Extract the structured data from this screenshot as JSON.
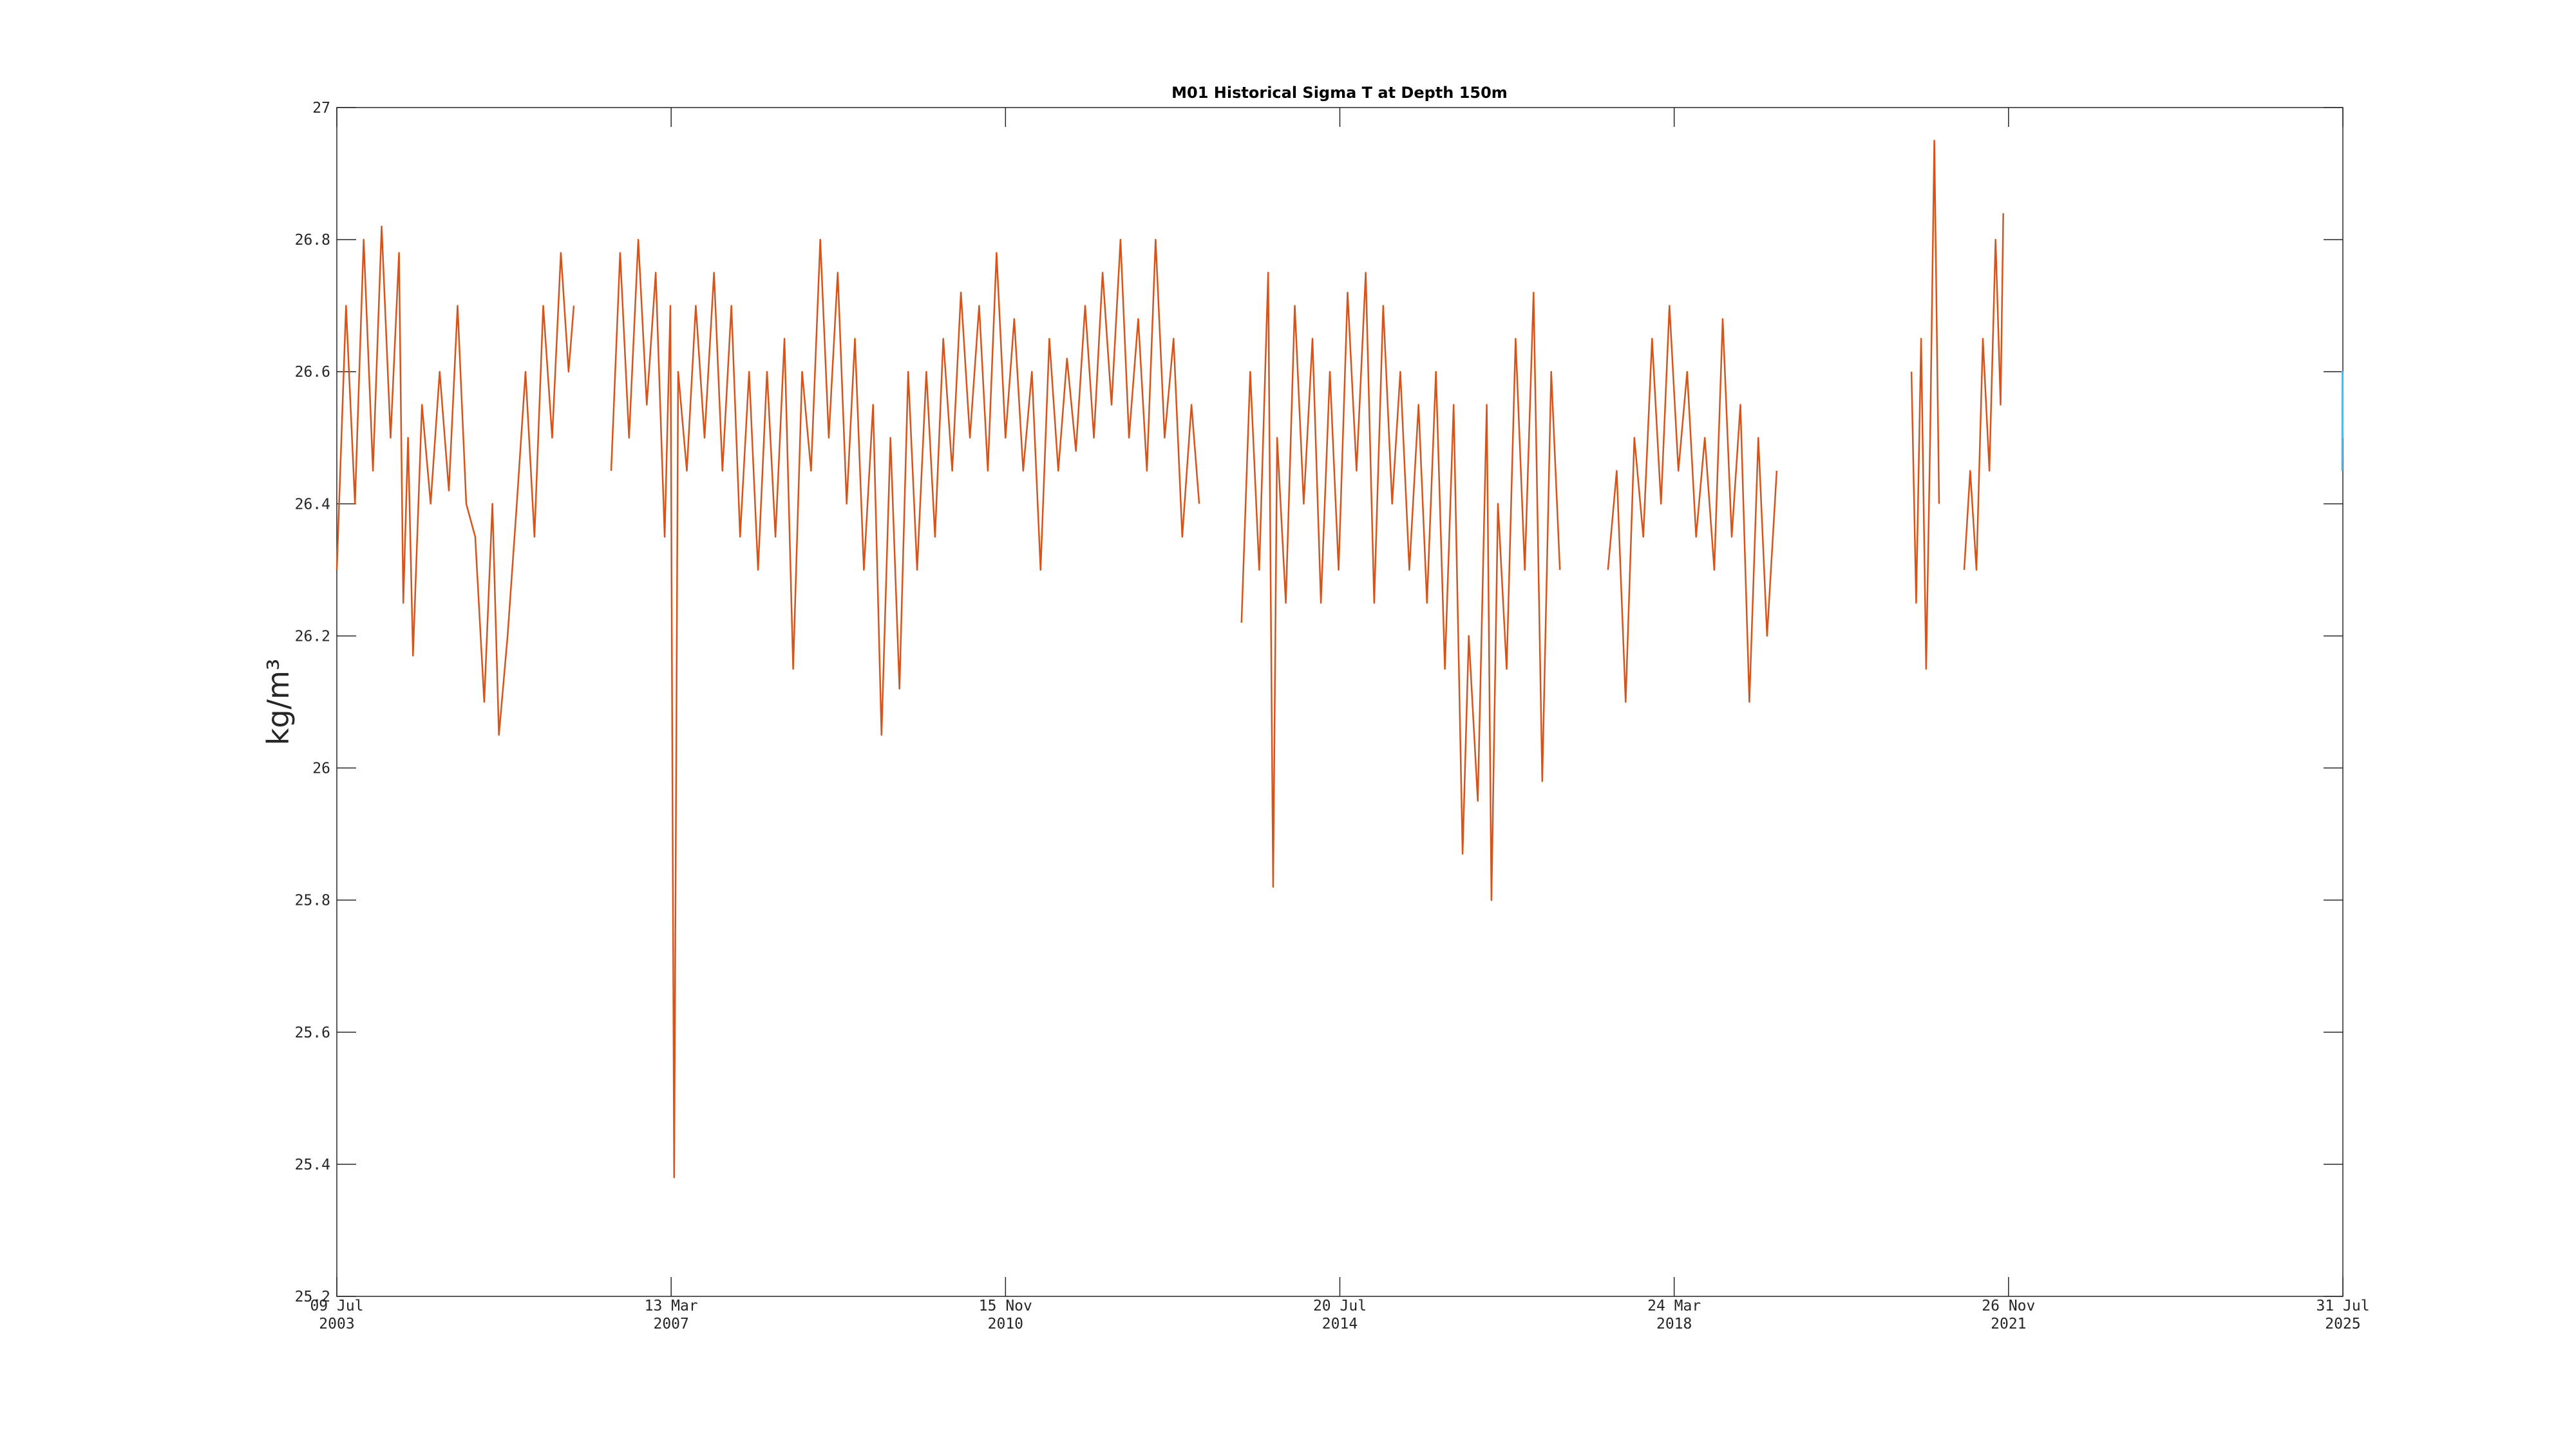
{
  "chart_data": {
    "type": "line",
    "title": "M01 Historical Sigma T at Depth 150m",
    "ylabel": "kg/m³",
    "xlim": [
      "2003-07-09",
      "2025-07-31"
    ],
    "xticks": [
      {
        "value": "2003-07-09",
        "label": [
          "09 Jul",
          "2003"
        ]
      },
      {
        "value": "2007-03-13",
        "label": [
          "13 Mar",
          "2007"
        ]
      },
      {
        "value": "2010-11-15",
        "label": [
          "15 Nov",
          "2010"
        ]
      },
      {
        "value": "2014-07-20",
        "label": [
          "20 Jul",
          "2014"
        ]
      },
      {
        "value": "2018-03-24",
        "label": [
          "24 Mar",
          "2018"
        ]
      },
      {
        "value": "2021-11-26",
        "label": [
          "26 Nov",
          "2021"
        ]
      },
      {
        "value": "2025-07-31",
        "label": [
          "31 Jul",
          "2025"
        ]
      }
    ],
    "ylim": [
      25.2,
      27
    ],
    "yticks": [
      25.2,
      25.4,
      25.6,
      25.8,
      26,
      26.2,
      26.4,
      26.6,
      26.8,
      27
    ],
    "grid": false,
    "series": [
      {
        "color": "#d95319",
        "x": [
          "2003-07-09",
          "2003-08-15",
          "2003-09-20",
          "2003-10-25",
          "2003-12-01",
          "2004-01-05",
          "2004-02-10",
          "2004-03-15",
          "2004-04-01",
          "2004-04-20",
          "2004-05-10",
          "2004-06-15",
          "2004-07-20",
          "2004-08-25",
          "2004-10-01",
          "2004-11-05",
          "2004-12-10",
          "2005-01-15",
          "2005-02-20",
          "2005-03-25",
          "2005-04-20",
          "2005-05-25",
          "2005-07-01",
          "2005-08-05",
          "2005-09-10",
          "2005-10-15",
          "2005-11-20",
          "2005-12-25",
          "2006-01-25",
          "2006-02-15",
          "2006-04-01",
          "2006-07-15",
          "2006-08-20",
          "2006-09-25",
          "2006-11-01",
          "2006-12-05",
          "2007-01-10",
          "2007-02-15",
          "2007-03-10",
          "2007-03-25",
          "2007-04-10",
          "2007-05-15",
          "2007-06-20",
          "2007-07-25",
          "2007-09-01",
          "2007-10-05",
          "2007-11-10",
          "2007-12-15",
          "2008-01-20",
          "2008-02-25",
          "2008-04-01",
          "2008-05-05",
          "2008-06-10",
          "2008-07-15",
          "2008-08-20",
          "2008-09-25",
          "2008-11-01",
          "2008-12-05",
          "2009-01-10",
          "2009-02-15",
          "2009-03-20",
          "2009-04-25",
          "2009-06-01",
          "2009-07-05",
          "2009-08-10",
          "2009-09-15",
          "2009-10-20",
          "2009-11-25",
          "2010-01-01",
          "2010-02-05",
          "2010-03-10",
          "2010-04-15",
          "2010-05-20",
          "2010-06-25",
          "2010-08-01",
          "2010-09-05",
          "2010-10-10",
          "2010-11-15",
          "2010-12-20",
          "2011-01-25",
          "2011-03-01",
          "2011-04-05",
          "2011-05-10",
          "2011-06-15",
          "2011-07-20",
          "2011-08-25",
          "2011-10-01",
          "2011-11-05",
          "2011-12-10",
          "2012-01-15",
          "2012-02-20",
          "2012-03-25",
          "2012-05-01",
          "2012-06-05",
          "2012-07-10",
          "2012-08-15",
          "2012-09-20",
          "2012-10-25",
          "2012-12-01",
          "2013-01-01",
          "2013-03-01",
          "2013-06-20",
          "2013-07-25",
          "2013-08-30",
          "2013-10-05",
          "2013-10-25",
          "2013-11-10",
          "2013-12-15",
          "2014-01-20",
          "2014-02-25",
          "2014-04-01",
          "2014-05-05",
          "2014-06-10",
          "2014-07-15",
          "2014-08-20",
          "2014-09-25",
          "2014-11-01",
          "2014-12-05",
          "2015-01-10",
          "2015-02-15",
          "2015-03-20",
          "2015-04-25",
          "2015-06-01",
          "2015-07-05",
          "2015-08-10",
          "2015-09-15",
          "2015-10-20",
          "2015-11-25",
          "2015-12-20",
          "2016-01-25",
          "2016-03-01",
          "2016-03-20",
          "2016-04-15",
          "2016-05-20",
          "2016-06-25",
          "2016-08-01",
          "2016-09-05",
          "2016-10-10",
          "2016-11-15",
          "2016-12-20",
          "2017-03-01",
          "2017-07-01",
          "2017-08-05",
          "2017-09-10",
          "2017-10-15",
          "2017-11-20",
          "2017-12-25",
          "2018-01-30",
          "2018-03-05",
          "2018-04-10",
          "2018-05-15",
          "2018-06-20",
          "2018-07-25",
          "2018-09-01",
          "2018-10-05",
          "2018-11-10",
          "2018-12-15",
          "2019-01-20",
          "2019-02-25",
          "2019-04-01",
          "2019-05-10",
          "2020-01-01",
          "2020-11-01",
          "2020-11-20",
          "2020-12-10",
          "2020-12-30",
          "2021-01-15",
          "2021-02-01",
          "2021-02-20",
          "2021-04-01",
          "2021-06-01",
          "2021-06-25",
          "2021-07-20",
          "2021-08-15",
          "2021-09-10",
          "2021-10-05",
          "2021-10-25",
          "2021-11-05"
        ],
        "values": [
          26.3,
          26.7,
          26.4,
          26.8,
          26.45,
          26.82,
          26.5,
          26.78,
          26.25,
          26.5,
          26.17,
          26.55,
          26.4,
          26.6,
          26.42,
          26.7,
          26.4,
          26.35,
          26.1,
          26.4,
          26.05,
          26.2,
          26.4,
          26.6,
          26.35,
          26.7,
          26.5,
          26.78,
          26.6,
          26.7,
          null,
          26.45,
          26.78,
          26.5,
          26.8,
          26.55,
          26.75,
          26.35,
          26.7,
          25.38,
          26.6,
          26.45,
          26.7,
          26.5,
          26.75,
          26.45,
          26.7,
          26.35,
          26.6,
          26.3,
          26.6,
          26.35,
          26.65,
          26.15,
          26.6,
          26.45,
          26.8,
          26.5,
          26.75,
          26.4,
          26.65,
          26.3,
          26.55,
          26.05,
          26.5,
          26.12,
          26.6,
          26.3,
          26.6,
          26.35,
          26.65,
          26.45,
          26.72,
          26.5,
          26.7,
          26.45,
          26.78,
          26.5,
          26.68,
          26.45,
          26.6,
          26.3,
          26.65,
          26.45,
          26.62,
          26.48,
          26.7,
          26.5,
          26.75,
          26.55,
          26.8,
          26.5,
          26.68,
          26.45,
          26.8,
          26.5,
          26.65,
          26.35,
          26.55,
          26.4,
          null,
          26.22,
          26.6,
          26.3,
          26.75,
          25.82,
          26.5,
          26.25,
          26.7,
          26.4,
          26.65,
          26.25,
          26.6,
          26.3,
          26.72,
          26.45,
          26.75,
          26.25,
          26.7,
          26.4,
          26.6,
          26.3,
          26.55,
          26.25,
          26.6,
          26.15,
          26.55,
          25.87,
          26.2,
          25.95,
          26.55,
          25.8,
          26.4,
          26.15,
          26.65,
          26.3,
          26.72,
          25.98,
          26.6,
          26.3,
          null,
          26.3,
          26.45,
          26.1,
          26.5,
          26.35,
          26.65,
          26.4,
          26.7,
          26.45,
          26.6,
          26.35,
          26.5,
          26.3,
          26.68,
          26.35,
          26.55,
          26.1,
          26.5,
          26.2,
          26.45,
          null,
          26.6,
          26.25,
          26.65,
          26.15,
          26.5,
          26.95,
          26.4,
          null,
          26.3,
          26.45,
          26.3,
          26.65,
          26.45,
          26.8,
          26.55,
          26.84
        ]
      },
      {
        "color": "#4dbeee",
        "x": [
          "2025-07-28",
          "2025-07-29",
          "2025-07-30"
        ],
        "values": [
          26.45,
          26.6,
          26.5
        ]
      }
    ]
  }
}
